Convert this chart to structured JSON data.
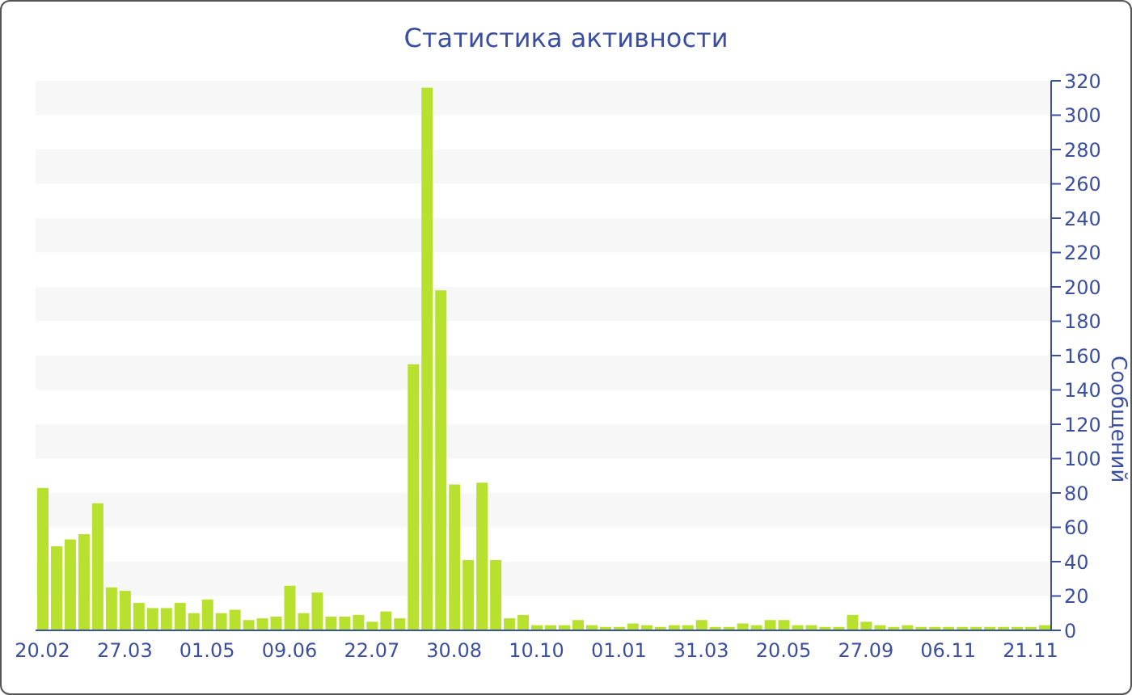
{
  "chart_data": {
    "type": "bar",
    "title": "Статистика активности",
    "ylabel": "Сообщений",
    "categories": [
      "20.02",
      null,
      null,
      null,
      null,
      null,
      "27.03",
      null,
      null,
      null,
      null,
      null,
      "01.05",
      null,
      null,
      null,
      null,
      null,
      "09.06",
      null,
      null,
      null,
      null,
      null,
      "22.07",
      null,
      null,
      null,
      null,
      null,
      "30.08",
      null,
      null,
      null,
      null,
      null,
      "10.10",
      null,
      null,
      null,
      null,
      null,
      "01.01",
      null,
      null,
      null,
      null,
      null,
      "31.03",
      null,
      null,
      null,
      null,
      null,
      "20.05",
      null,
      null,
      null,
      null,
      null,
      "27.09",
      null,
      null,
      null,
      null,
      null,
      "06.11",
      null,
      null,
      null,
      null,
      null,
      "21.11",
      null
    ],
    "values": [
      83,
      49,
      53,
      56,
      74,
      25,
      23,
      16,
      13,
      13,
      16,
      10,
      18,
      10,
      12,
      6,
      7,
      8,
      26,
      10,
      22,
      8,
      8,
      9,
      5,
      11,
      7,
      155,
      316,
      198,
      85,
      41,
      86,
      41,
      7,
      9,
      3,
      3,
      3,
      6,
      3,
      2,
      2,
      4,
      3,
      2,
      3,
      3,
      6,
      2,
      2,
      4,
      3,
      6,
      6,
      3,
      3,
      2,
      2,
      9,
      5,
      3,
      2,
      3,
      2,
      2,
      2,
      2,
      2,
      2,
      2,
      2,
      2,
      3
    ],
    "color": "#b8e02e",
    "ylim": [
      0,
      320
    ],
    "yticks": [
      0,
      20,
      40,
      60,
      80,
      100,
      120,
      140,
      160,
      180,
      200,
      220,
      240,
      260,
      280,
      300,
      320
    ],
    "bands": [
      {
        "axis": "y",
        "from": 20,
        "to": 40,
        "color": "#f7f7f7"
      },
      {
        "axis": "y",
        "from": 60,
        "to": 80,
        "color": "#f7f7f7"
      },
      {
        "axis": "y",
        "from": 100,
        "to": 120,
        "color": "#f7f7f7"
      },
      {
        "axis": "y",
        "from": 140,
        "to": 160,
        "color": "#f7f7f7"
      },
      {
        "axis": "y",
        "from": 180,
        "to": 200,
        "color": "#f7f7f7"
      },
      {
        "axis": "y",
        "from": 220,
        "to": 240,
        "color": "#f7f7f7"
      },
      {
        "axis": "y",
        "from": 260,
        "to": 280,
        "color": "#f7f7f7"
      },
      {
        "axis": "y",
        "from": 300,
        "to": 320,
        "color": "#f7f7f7"
      }
    ]
  }
}
